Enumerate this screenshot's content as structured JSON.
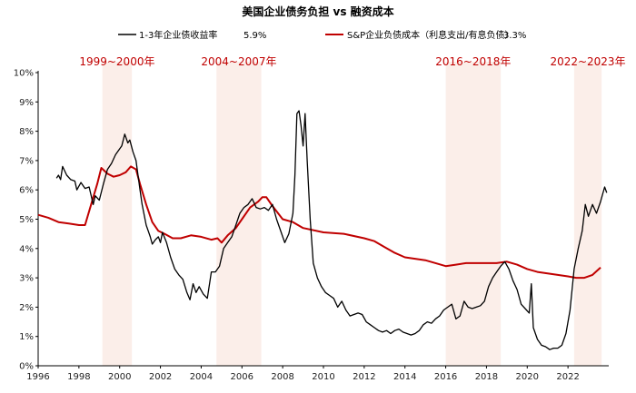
{
  "chart_data": {
    "type": "line",
    "title": "美国企业债务负担 vs 融资成本",
    "xlabel": "",
    "ylabel": "",
    "xlim": [
      1996,
      2024
    ],
    "ylim": [
      0,
      10
    ],
    "x_ticks": [
      "1996",
      "1998",
      "2000",
      "2002",
      "2004",
      "2006",
      "2008",
      "2010",
      "2012",
      "2014",
      "2016",
      "2018",
      "2020",
      "2022"
    ],
    "y_ticks": [
      "0%",
      "1%",
      "2%",
      "3%",
      "4%",
      "5%",
      "6%",
      "7%",
      "8%",
      "9%",
      "10%"
    ],
    "grid": false,
    "legend_position": "top",
    "shaded_periods": [
      {
        "label": "1999~2000年",
        "start": 1999.15,
        "end": 2000.6
      },
      {
        "label": "2004~2007年",
        "start": 2004.75,
        "end": 2006.95
      },
      {
        "label": "2016~2018年",
        "start": 2016.0,
        "end": 2018.7
      },
      {
        "label": "2022~2023年",
        "start": 2022.3,
        "end": 2023.65
      }
    ],
    "series": [
      {
        "name": "1-3年企业债收益率",
        "latest_label": "5.9%",
        "color": "#000000",
        "points": [
          [
            1996.9,
            6.4
          ],
          [
            1997.0,
            6.5
          ],
          [
            1997.1,
            6.35
          ],
          [
            1997.2,
            6.8
          ],
          [
            1997.4,
            6.5
          ],
          [
            1997.6,
            6.35
          ],
          [
            1997.8,
            6.3
          ],
          [
            1997.9,
            6.0
          ],
          [
            1998.1,
            6.25
          ],
          [
            1998.3,
            6.05
          ],
          [
            1998.5,
            6.1
          ],
          [
            1998.7,
            5.5
          ],
          [
            1998.8,
            5.8
          ],
          [
            1999.0,
            5.65
          ],
          [
            1999.2,
            6.2
          ],
          [
            1999.4,
            6.7
          ],
          [
            1999.6,
            6.9
          ],
          [
            1999.8,
            7.2
          ],
          [
            2000.0,
            7.4
          ],
          [
            2000.1,
            7.5
          ],
          [
            2000.25,
            7.9
          ],
          [
            2000.4,
            7.6
          ],
          [
            2000.5,
            7.7
          ],
          [
            2000.65,
            7.3
          ],
          [
            2000.8,
            7.0
          ],
          [
            2001.0,
            6.0
          ],
          [
            2001.1,
            5.5
          ],
          [
            2001.3,
            4.8
          ],
          [
            2001.5,
            4.4
          ],
          [
            2001.6,
            4.15
          ],
          [
            2001.75,
            4.3
          ],
          [
            2001.9,
            4.4
          ],
          [
            2002.0,
            4.2
          ],
          [
            2002.1,
            4.55
          ],
          [
            2002.3,
            4.2
          ],
          [
            2002.5,
            3.7
          ],
          [
            2002.7,
            3.3
          ],
          [
            2002.9,
            3.1
          ],
          [
            2003.1,
            2.95
          ],
          [
            2003.3,
            2.5
          ],
          [
            2003.45,
            2.25
          ],
          [
            2003.6,
            2.8
          ],
          [
            2003.75,
            2.5
          ],
          [
            2003.9,
            2.7
          ],
          [
            2004.1,
            2.45
          ],
          [
            2004.3,
            2.3
          ],
          [
            2004.5,
            3.2
          ],
          [
            2004.7,
            3.2
          ],
          [
            2004.9,
            3.4
          ],
          [
            2005.1,
            4.0
          ],
          [
            2005.3,
            4.2
          ],
          [
            2005.5,
            4.4
          ],
          [
            2005.7,
            4.8
          ],
          [
            2005.9,
            5.2
          ],
          [
            2006.1,
            5.4
          ],
          [
            2006.3,
            5.5
          ],
          [
            2006.5,
            5.7
          ],
          [
            2006.7,
            5.4
          ],
          [
            2006.9,
            5.35
          ],
          [
            2007.1,
            5.4
          ],
          [
            2007.3,
            5.3
          ],
          [
            2007.5,
            5.5
          ],
          [
            2007.7,
            5.0
          ],
          [
            2007.9,
            4.6
          ],
          [
            2008.1,
            4.2
          ],
          [
            2008.3,
            4.5
          ],
          [
            2008.5,
            5.2
          ],
          [
            2008.6,
            6.5
          ],
          [
            2008.7,
            8.6
          ],
          [
            2008.8,
            8.7
          ],
          [
            2008.9,
            8.2
          ],
          [
            2009.0,
            7.5
          ],
          [
            2009.1,
            8.6
          ],
          [
            2009.2,
            7.0
          ],
          [
            2009.35,
            5.0
          ],
          [
            2009.5,
            3.5
          ],
          [
            2009.7,
            3.0
          ],
          [
            2009.9,
            2.7
          ],
          [
            2010.1,
            2.5
          ],
          [
            2010.3,
            2.4
          ],
          [
            2010.5,
            2.3
          ],
          [
            2010.7,
            2.0
          ],
          [
            2010.9,
            2.2
          ],
          [
            2011.1,
            1.9
          ],
          [
            2011.3,
            1.7
          ],
          [
            2011.5,
            1.75
          ],
          [
            2011.7,
            1.8
          ],
          [
            2011.9,
            1.75
          ],
          [
            2012.1,
            1.5
          ],
          [
            2012.3,
            1.4
          ],
          [
            2012.5,
            1.3
          ],
          [
            2012.7,
            1.2
          ],
          [
            2012.9,
            1.15
          ],
          [
            2013.1,
            1.2
          ],
          [
            2013.3,
            1.1
          ],
          [
            2013.5,
            1.2
          ],
          [
            2013.7,
            1.25
          ],
          [
            2013.9,
            1.15
          ],
          [
            2014.1,
            1.1
          ],
          [
            2014.3,
            1.05
          ],
          [
            2014.5,
            1.1
          ],
          [
            2014.7,
            1.2
          ],
          [
            2014.9,
            1.4
          ],
          [
            2015.1,
            1.5
          ],
          [
            2015.3,
            1.45
          ],
          [
            2015.5,
            1.6
          ],
          [
            2015.7,
            1.7
          ],
          [
            2015.9,
            1.9
          ],
          [
            2016.1,
            2.0
          ],
          [
            2016.3,
            2.1
          ],
          [
            2016.5,
            1.6
          ],
          [
            2016.7,
            1.7
          ],
          [
            2016.9,
            2.2
          ],
          [
            2017.1,
            2.0
          ],
          [
            2017.3,
            1.95
          ],
          [
            2017.5,
            2.0
          ],
          [
            2017.7,
            2.05
          ],
          [
            2017.9,
            2.2
          ],
          [
            2018.1,
            2.7
          ],
          [
            2018.3,
            3.0
          ],
          [
            2018.5,
            3.2
          ],
          [
            2018.7,
            3.4
          ],
          [
            2018.9,
            3.55
          ],
          [
            2019.1,
            3.3
          ],
          [
            2019.3,
            2.9
          ],
          [
            2019.5,
            2.6
          ],
          [
            2019.7,
            2.1
          ],
          [
            2019.9,
            1.95
          ],
          [
            2020.1,
            1.8
          ],
          [
            2020.2,
            2.8
          ],
          [
            2020.3,
            1.3
          ],
          [
            2020.5,
            0.9
          ],
          [
            2020.7,
            0.7
          ],
          [
            2020.9,
            0.65
          ],
          [
            2021.1,
            0.55
          ],
          [
            2021.3,
            0.6
          ],
          [
            2021.5,
            0.6
          ],
          [
            2021.7,
            0.7
          ],
          [
            2021.9,
            1.1
          ],
          [
            2022.1,
            1.9
          ],
          [
            2022.3,
            3.3
          ],
          [
            2022.5,
            4.0
          ],
          [
            2022.7,
            4.6
          ],
          [
            2022.85,
            5.5
          ],
          [
            2023.0,
            5.1
          ],
          [
            2023.2,
            5.5
          ],
          [
            2023.4,
            5.2
          ],
          [
            2023.6,
            5.6
          ],
          [
            2023.8,
            6.1
          ],
          [
            2023.9,
            5.9
          ]
        ]
      },
      {
        "name": "S&P企业负债成本（利息支出/有息负债）",
        "latest_label": "3.3%",
        "color": "#c00000",
        "points": [
          [
            1996.0,
            5.15
          ],
          [
            1996.5,
            5.05
          ],
          [
            1997.0,
            4.9
          ],
          [
            1997.5,
            4.85
          ],
          [
            1998.0,
            4.8
          ],
          [
            1998.3,
            4.8
          ],
          [
            1998.6,
            5.5
          ],
          [
            1998.9,
            6.2
          ],
          [
            1999.1,
            6.75
          ],
          [
            1999.4,
            6.55
          ],
          [
            1999.7,
            6.45
          ],
          [
            2000.0,
            6.5
          ],
          [
            2000.3,
            6.6
          ],
          [
            2000.55,
            6.8
          ],
          [
            2000.8,
            6.7
          ],
          [
            2001.0,
            6.2
          ],
          [
            2001.3,
            5.5
          ],
          [
            2001.6,
            4.9
          ],
          [
            2001.9,
            4.6
          ],
          [
            2002.2,
            4.5
          ],
          [
            2002.6,
            4.35
          ],
          [
            2003.0,
            4.35
          ],
          [
            2003.5,
            4.45
          ],
          [
            2004.0,
            4.4
          ],
          [
            2004.5,
            4.3
          ],
          [
            2004.8,
            4.35
          ],
          [
            2005.0,
            4.2
          ],
          [
            2005.3,
            4.45
          ],
          [
            2005.7,
            4.7
          ],
          [
            2006.0,
            5.0
          ],
          [
            2006.4,
            5.4
          ],
          [
            2006.8,
            5.6
          ],
          [
            2007.0,
            5.75
          ],
          [
            2007.2,
            5.75
          ],
          [
            2007.5,
            5.45
          ],
          [
            2008.0,
            5.0
          ],
          [
            2008.5,
            4.9
          ],
          [
            2009.0,
            4.7
          ],
          [
            2010.0,
            4.55
          ],
          [
            2011.0,
            4.5
          ],
          [
            2012.0,
            4.35
          ],
          [
            2012.5,
            4.25
          ],
          [
            2013.0,
            4.05
          ],
          [
            2013.5,
            3.85
          ],
          [
            2014.0,
            3.7
          ],
          [
            2014.5,
            3.65
          ],
          [
            2015.0,
            3.6
          ],
          [
            2015.5,
            3.5
          ],
          [
            2016.0,
            3.4
          ],
          [
            2016.5,
            3.45
          ],
          [
            2017.0,
            3.5
          ],
          [
            2017.5,
            3.5
          ],
          [
            2018.0,
            3.5
          ],
          [
            2018.5,
            3.5
          ],
          [
            2019.0,
            3.55
          ],
          [
            2019.5,
            3.45
          ],
          [
            2020.0,
            3.3
          ],
          [
            2020.5,
            3.2
          ],
          [
            2021.0,
            3.15
          ],
          [
            2021.5,
            3.1
          ],
          [
            2022.0,
            3.05
          ],
          [
            2022.4,
            3.0
          ],
          [
            2022.8,
            3.0
          ],
          [
            2023.2,
            3.1
          ],
          [
            2023.6,
            3.35
          ]
        ]
      }
    ]
  }
}
